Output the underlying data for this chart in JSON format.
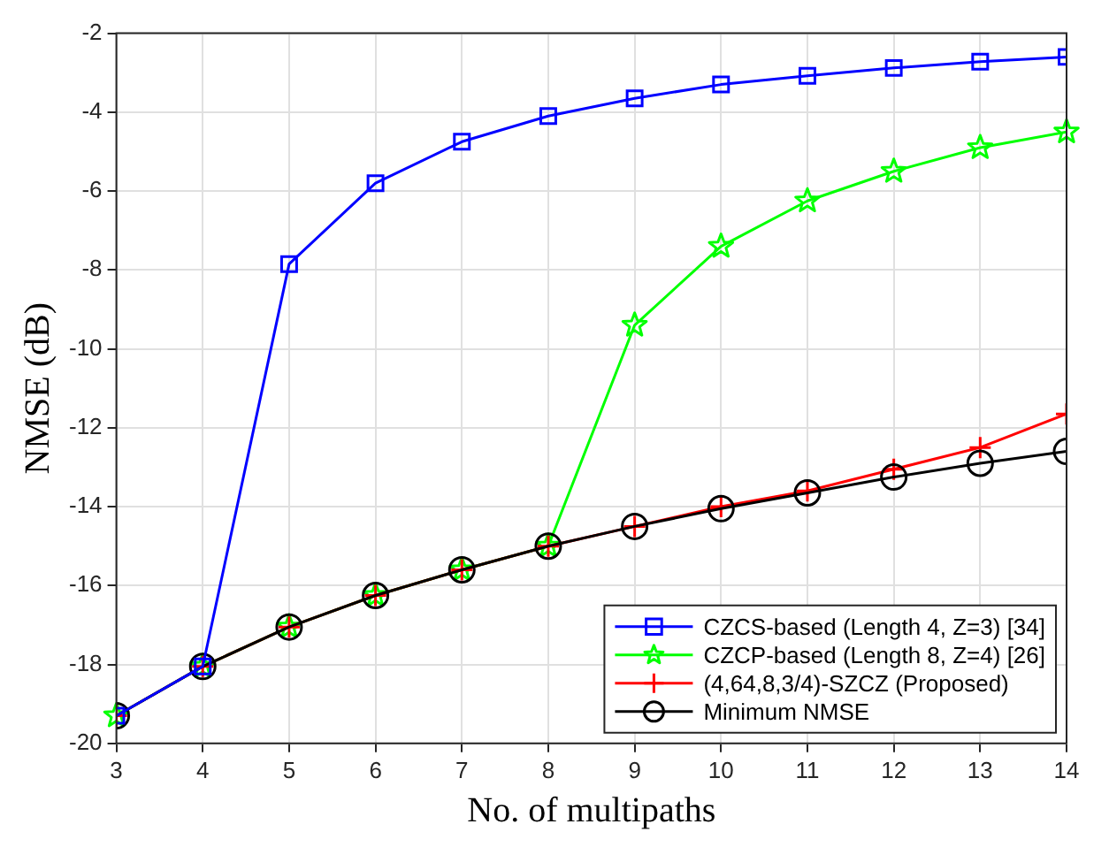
{
  "chart_data": {
    "type": "line",
    "xlabel": "No. of multipaths",
    "ylabel": "NMSE (dB)",
    "x": [
      3,
      4,
      5,
      6,
      7,
      8,
      9,
      10,
      11,
      12,
      13,
      14
    ],
    "xlim": [
      3,
      14
    ],
    "xticks": [
      3,
      4,
      5,
      6,
      7,
      8,
      9,
      10,
      11,
      12,
      13,
      14
    ],
    "ylim": [
      -20,
      -2
    ],
    "yticks": [
      -20,
      -18,
      -16,
      -14,
      -12,
      -10,
      -8,
      -6,
      -4,
      -2
    ],
    "grid": true,
    "legend": "bottom right",
    "line_style": "solid",
    "series": [
      {
        "name": "CZCS-based (Length 4, Z=3) [34]",
        "color": "#0000ff",
        "marker": "square",
        "values": [
          -19.3,
          -18.05,
          -7.85,
          -5.8,
          -4.75,
          -4.1,
          -3.65,
          -3.3,
          -3.08,
          -2.88,
          -2.72,
          -2.6
        ]
      },
      {
        "name": "CZCP-based (Length 8, Z=4) [26]",
        "color": "#00ff00",
        "marker": "star",
        "values": [
          -19.3,
          -18.05,
          -17.05,
          -16.25,
          -15.6,
          -15.0,
          -9.4,
          -7.4,
          -6.25,
          -5.5,
          -4.9,
          -4.5
        ]
      },
      {
        "name": "(4,64,8,3/4)-SZCZ (Proposed)",
        "color": "#ff0000",
        "marker": "cross",
        "values": [
          -19.3,
          -18.05,
          -17.05,
          -16.25,
          -15.6,
          -15.0,
          -14.5,
          -14.0,
          -13.6,
          -13.05,
          -12.5,
          -11.65
        ]
      },
      {
        "name": "Minimum NMSE",
        "color": "#000000",
        "marker": "circle",
        "values": [
          -19.3,
          -18.05,
          -17.05,
          -16.25,
          -15.6,
          -15.0,
          -14.5,
          -14.05,
          -13.65,
          -13.25,
          -12.9,
          -12.6
        ]
      }
    ]
  }
}
